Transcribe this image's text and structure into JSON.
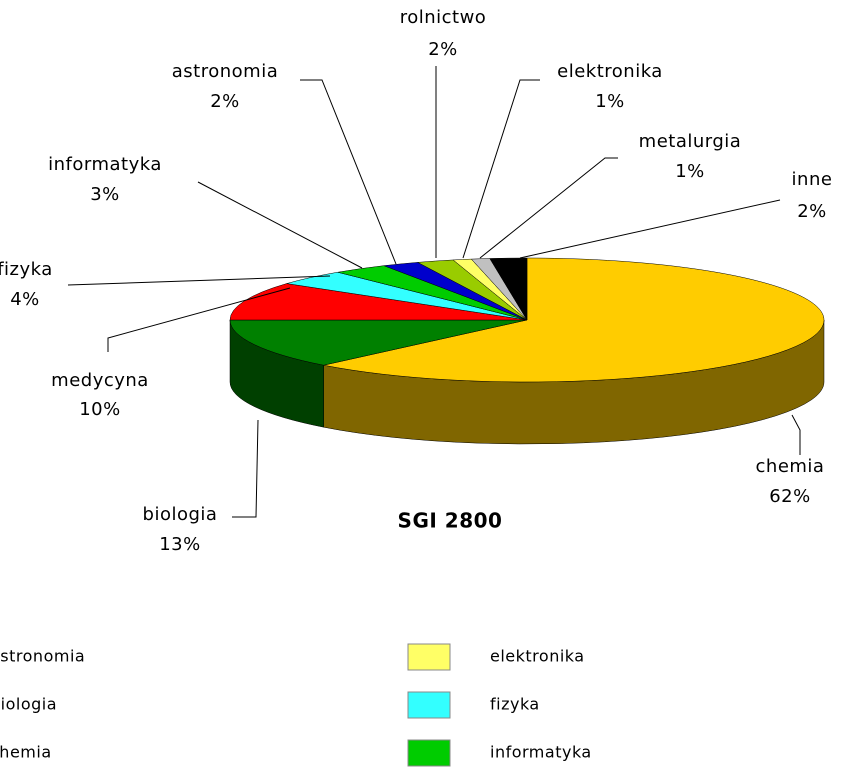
{
  "chart_data": {
    "type": "pie",
    "title": "SGI 2800",
    "categories": [
      "chemia",
      "biologia",
      "medycyna",
      "fizyka",
      "informatyka",
      "astronomia",
      "rolnictwo",
      "elektronika",
      "metalurgia",
      "inne"
    ],
    "values": [
      62,
      13,
      10,
      4,
      3,
      2,
      2,
      1,
      1,
      2
    ],
    "value_labels": [
      "62%",
      "13%",
      "10%",
      "4%",
      "3%",
      "2%",
      "2%",
      "1%",
      "1%",
      "2%"
    ],
    "colors": [
      "#ffcc00",
      "#008000",
      "#ff0000",
      "#33ffff",
      "#00cc00",
      "#0000cc",
      "#99cc00",
      "#ffff66",
      "#c0c0c0",
      "#000000"
    ],
    "legend": [
      "astronomia",
      "biologia",
      "chemia",
      "elektronika",
      "fizyka",
      "informatyka"
    ]
  }
}
